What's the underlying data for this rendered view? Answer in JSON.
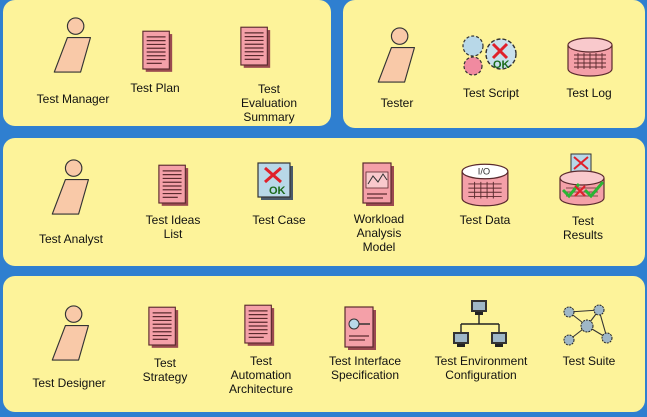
{
  "colors": {
    "background": "#2f7fd0",
    "panel": "#fdf39a",
    "person": "#f9c9a8",
    "document": "#f4a0a8",
    "check_green": "#2bb534",
    "cross_red": "#e0202a"
  },
  "panels": {
    "management": {
      "test_manager": {
        "label": "Test Manager",
        "icon": "person-icon"
      },
      "test_plan": {
        "label": "Test Plan",
        "icon": "document-icon"
      },
      "test_evaluation_summary": {
        "label": "Test\nEvaluation\nSummary",
        "icon": "document-icon"
      }
    },
    "execution": {
      "tester": {
        "label": "Tester",
        "icon": "person-icon"
      },
      "test_script": {
        "label": "Test Script",
        "icon": "gears-icon"
      },
      "test_log": {
        "label": "Test Log",
        "icon": "database-icon"
      }
    },
    "analysis": {
      "test_analyst": {
        "label": "Test Analyst",
        "icon": "person-icon"
      },
      "test_ideas_list": {
        "label": "Test Ideas\nList",
        "icon": "document-icon"
      },
      "test_case": {
        "label": "Test Case",
        "icon": "test-case-icon"
      },
      "workload_analysis_model": {
        "label": "Workload\nAnalysis\nModel",
        "icon": "model-document-icon"
      },
      "test_data": {
        "label": "Test Data",
        "icon": "io-database-icon"
      },
      "test_results": {
        "label": "Test\nResults",
        "icon": "results-database-icon"
      }
    },
    "design": {
      "test_designer": {
        "label": "Test Designer",
        "icon": "person-icon"
      },
      "test_strategy": {
        "label": "Test\nStrategy",
        "icon": "document-icon"
      },
      "test_automation_architecture": {
        "label": "Test\nAutomation\nArchitecture",
        "icon": "document-icon"
      },
      "test_interface_specification": {
        "label": "Test Interface\nSpecification",
        "icon": "interface-document-icon"
      },
      "test_environment_configuration": {
        "label": "Test Environment\nConfiguration",
        "icon": "network-icon"
      },
      "test_suite": {
        "label": "Test Suite",
        "icon": "suite-network-icon"
      }
    }
  },
  "io_text": "I/O",
  "ok_text": "OK"
}
